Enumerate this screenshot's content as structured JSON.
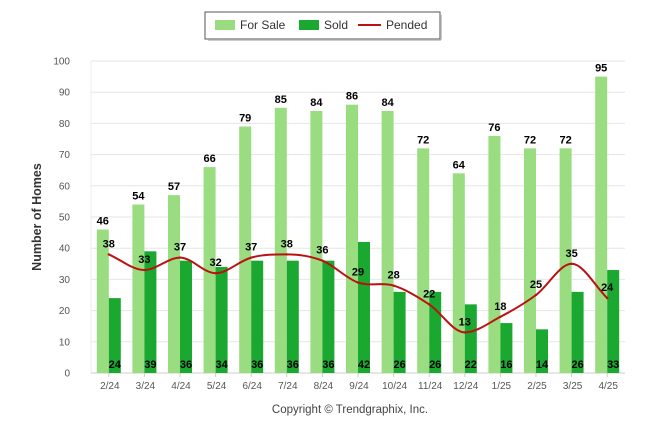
{
  "chart_data": {
    "type": "bar",
    "categories": [
      "2/24",
      "3/24",
      "4/24",
      "5/24",
      "6/24",
      "7/24",
      "8/24",
      "9/24",
      "10/24",
      "11/24",
      "12/24",
      "1/25",
      "2/25",
      "3/25",
      "4/25"
    ],
    "series": [
      {
        "name": "For Sale",
        "kind": "bar",
        "color": "#99dd80",
        "values": [
          46,
          54,
          57,
          66,
          79,
          85,
          84,
          86,
          84,
          72,
          64,
          76,
          72,
          72,
          95
        ]
      },
      {
        "name": "Sold",
        "kind": "bar",
        "color": "#1aa830",
        "values": [
          24,
          39,
          36,
          34,
          36,
          36,
          36,
          42,
          26,
          26,
          22,
          16,
          14,
          26,
          33
        ]
      },
      {
        "name": "Pended",
        "kind": "line",
        "color": "#bb1111",
        "values": [
          38,
          33,
          37,
          32,
          37,
          38,
          36,
          29,
          28,
          22,
          13,
          18,
          25,
          35,
          24
        ]
      }
    ],
    "xlabel": "",
    "ylabel": "Number of Homes",
    "ylim": [
      0,
      100
    ],
    "yticks": [
      0,
      10,
      20,
      30,
      40,
      50,
      60,
      70,
      80,
      90,
      100
    ],
    "grid": true,
    "legend_position": "top-center",
    "credit": "Copyright © Trendgraphix, Inc."
  }
}
